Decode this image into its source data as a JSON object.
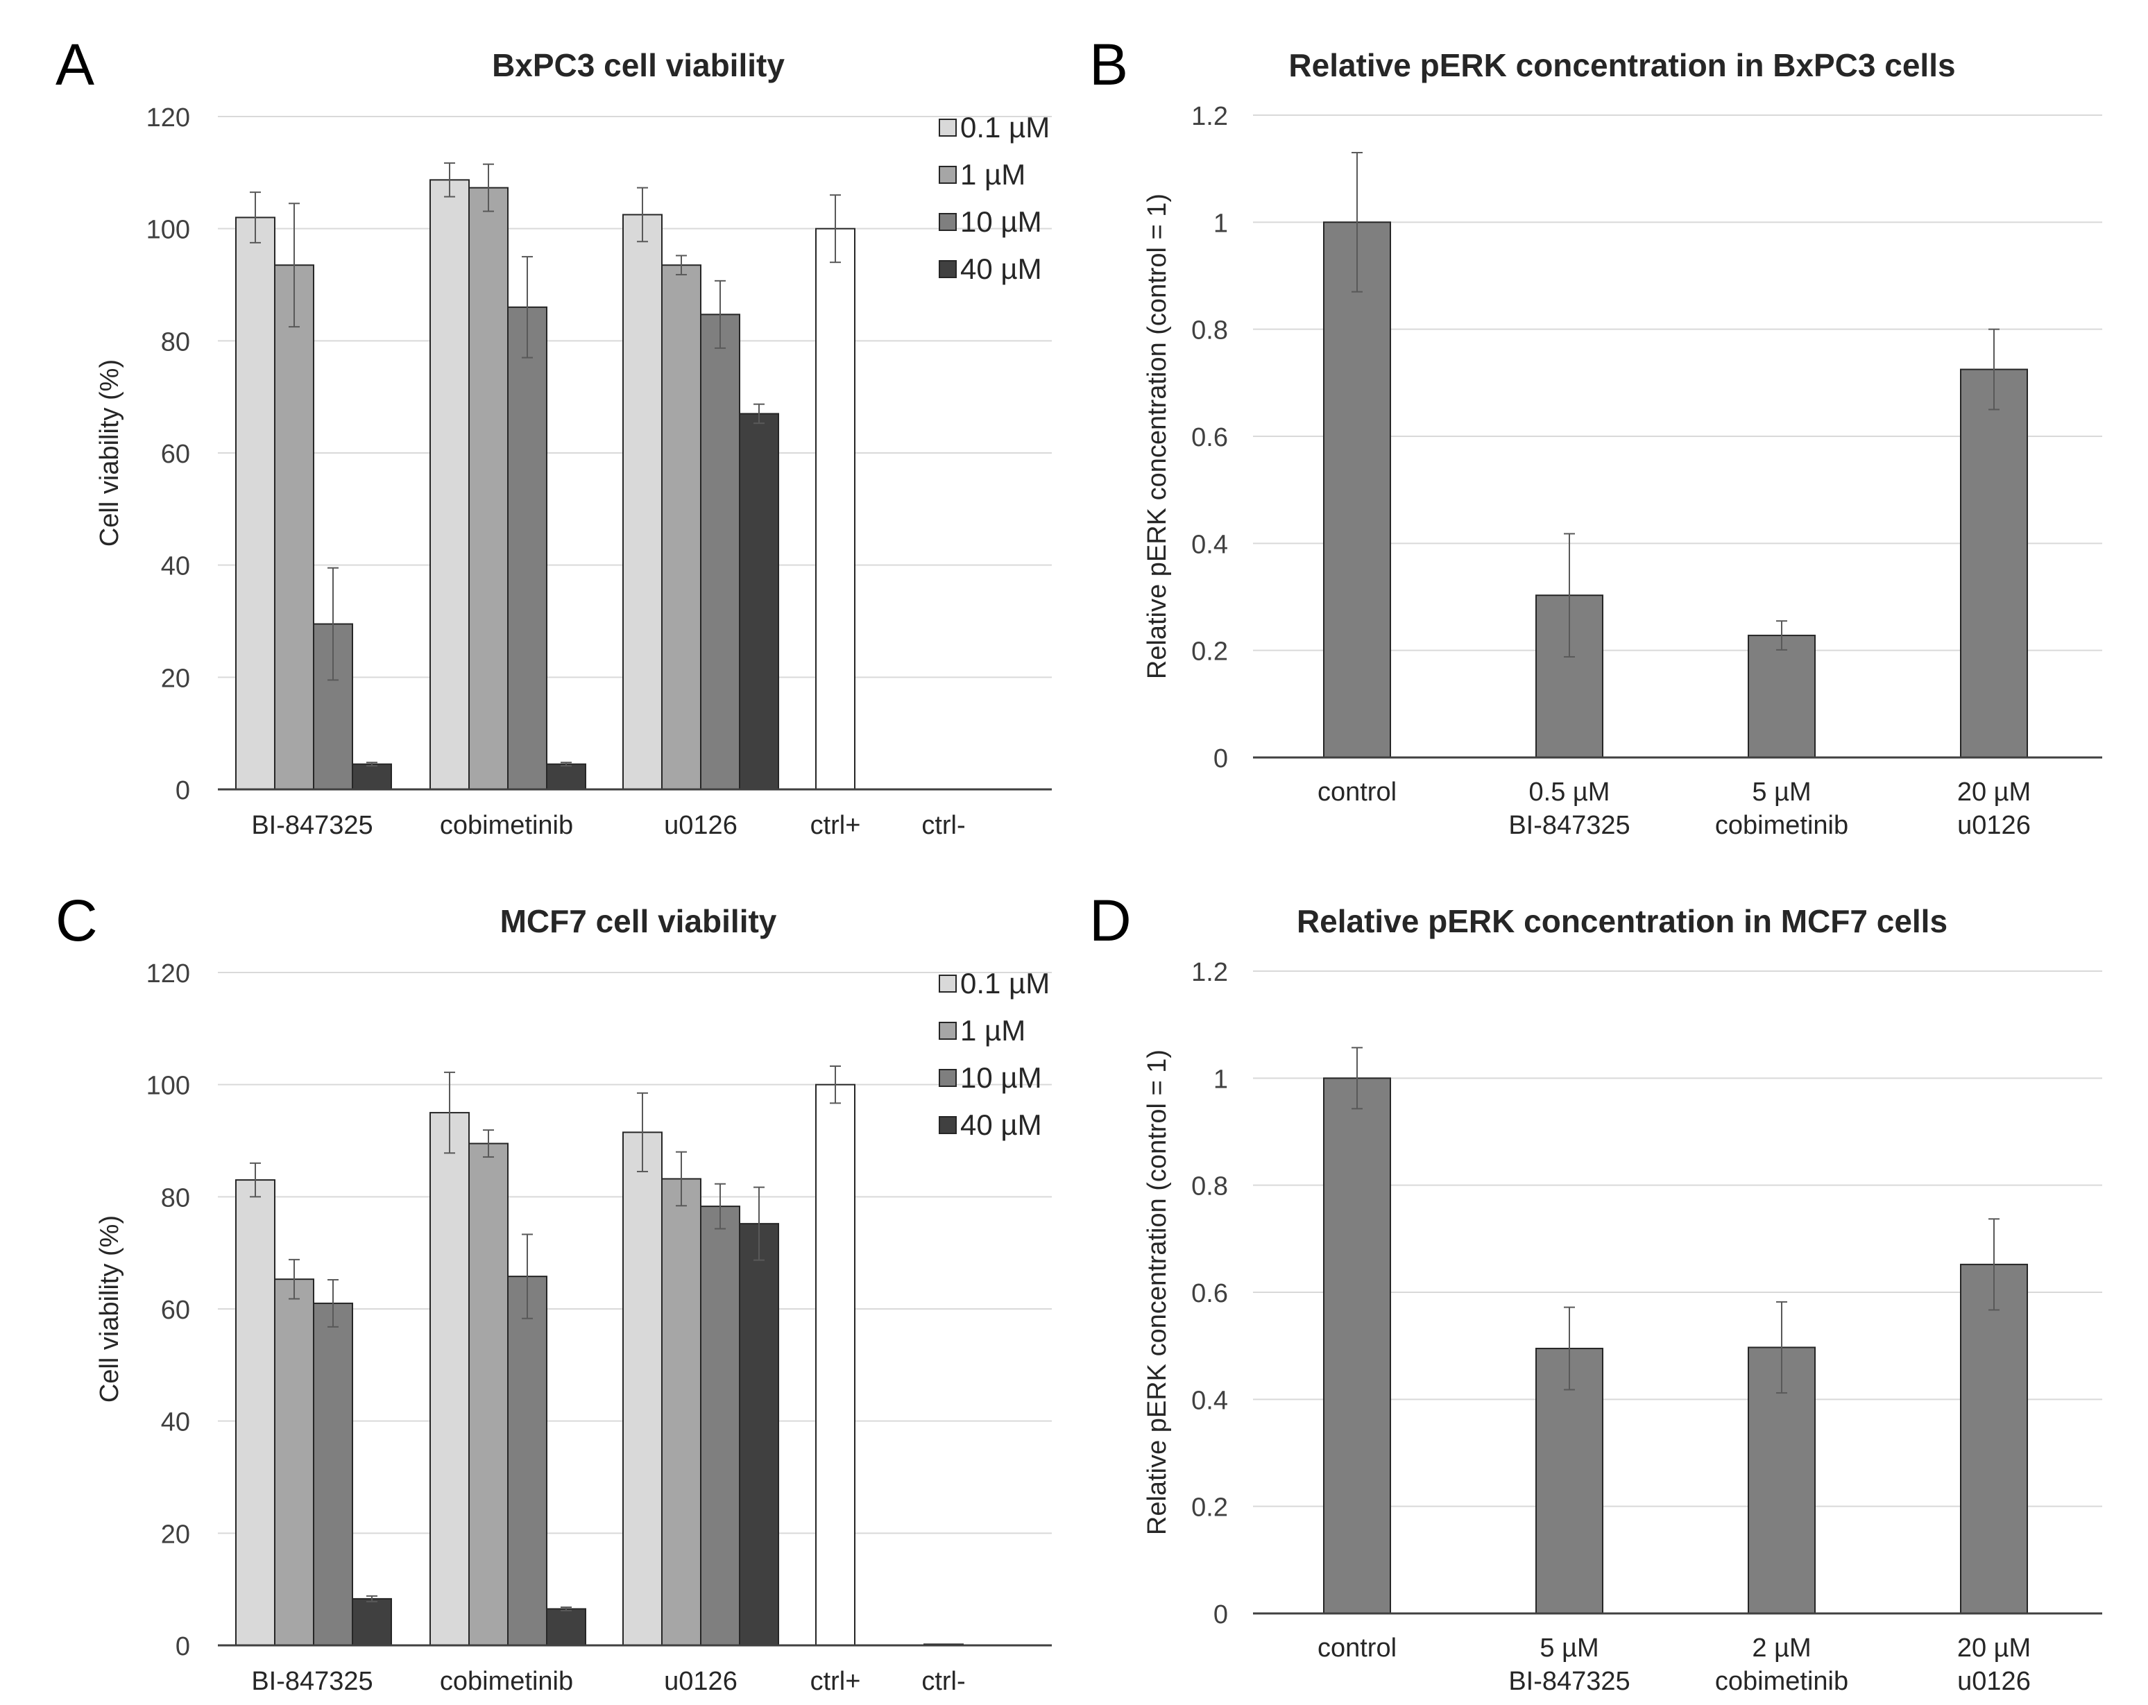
{
  "chart_data": [
    {
      "type": "bar",
      "panel": "A",
      "title": "BxPC3 cell viability",
      "ylabel": "Cell viability (%)",
      "ylim": [
        0,
        120
      ],
      "yticks": [
        "0",
        "20",
        "40",
        "60",
        "80",
        "100",
        "120"
      ],
      "categories": [
        "BI-847325",
        "cobimetinib",
        "u0126",
        "ctrl+",
        "ctrl-"
      ],
      "legend": [
        "0.1 µM",
        "1 µM",
        "10 µM",
        "40 µM"
      ],
      "legend_position": "top-right",
      "grid": true,
      "groups": [
        {
          "values": [
            102,
            93.5,
            29.5,
            4.5
          ],
          "errors": [
            4.5,
            11,
            10,
            0.3
          ]
        },
        {
          "values": [
            108.7,
            107.3,
            86,
            4.5
          ],
          "errors": [
            3,
            4.2,
            9,
            0.3
          ]
        },
        {
          "values": [
            102.5,
            93.5,
            84.7,
            67
          ],
          "errors": [
            4.8,
            1.7,
            6,
            1.7
          ]
        },
        {
          "values": [
            100
          ],
          "errors": [
            6
          ]
        },
        {
          "values": [
            0
          ],
          "errors": [
            0
          ]
        }
      ]
    },
    {
      "type": "bar",
      "panel": "B",
      "title": "Relative pERK concentration in BxPC3 cells",
      "ylabel": "Relative pERK concentration (control = 1)",
      "ylim": [
        0,
        1.2
      ],
      "yticks": [
        "0",
        "0.2",
        "0.4",
        "0.6",
        "0.8",
        "1",
        "1.2"
      ],
      "categories": [
        [
          "control",
          ""
        ],
        [
          "0.5 µM",
          "BI-847325"
        ],
        [
          "5 µM",
          "cobimetinib"
        ],
        [
          "20 µM",
          "u0126"
        ]
      ],
      "grid": true,
      "values": [
        1,
        0.303,
        0.228,
        0.725
      ],
      "errors": [
        0.13,
        0.115,
        0.027,
        0.075
      ]
    },
    {
      "type": "bar",
      "panel": "C",
      "title": "MCF7 cell viability",
      "ylabel": "Cell viability (%)",
      "ylim": [
        0,
        120
      ],
      "yticks": [
        "0",
        "20",
        "40",
        "60",
        "80",
        "100",
        "120"
      ],
      "categories": [
        "BI-847325",
        "cobimetinib",
        "u0126",
        "ctrl+",
        "ctrl-"
      ],
      "legend": [
        "0.1 µM",
        "1 µM",
        "10 µM",
        "40 µM"
      ],
      "legend_position": "top-right",
      "grid": true,
      "groups": [
        {
          "values": [
            83,
            65.3,
            61,
            8.3
          ],
          "errors": [
            3,
            3.5,
            4.2,
            0.5
          ]
        },
        {
          "values": [
            95,
            89.5,
            65.8,
            6.5
          ],
          "errors": [
            7.2,
            2.4,
            7.5,
            0.3
          ]
        },
        {
          "values": [
            91.5,
            83.2,
            78.3,
            75.2
          ],
          "errors": [
            7,
            4.8,
            4,
            6.5
          ]
        },
        {
          "values": [
            100
          ],
          "errors": [
            3.3
          ]
        },
        {
          "values": [
            0.2
          ],
          "errors": [
            0
          ]
        }
      ]
    },
    {
      "type": "bar",
      "panel": "D",
      "title": "Relative pERK concentration in MCF7 cells",
      "ylabel": "Relative pERK concentration (control = 1)",
      "ylim": [
        0,
        1.2
      ],
      "yticks": [
        "0",
        "0.2",
        "0.4",
        "0.6",
        "0.8",
        "1",
        "1.2"
      ],
      "categories": [
        [
          "control",
          ""
        ],
        [
          "5 µM",
          "BI-847325"
        ],
        [
          "2 µM",
          "cobimetinib"
        ],
        [
          "20 µM",
          "u0126"
        ]
      ],
      "grid": true,
      "values": [
        1,
        0.495,
        0.497,
        0.652
      ],
      "errors": [
        0.057,
        0.077,
        0.085,
        0.085
      ]
    }
  ],
  "colors": {
    "dose": [
      "#d9d9d9",
      "#a6a6a6",
      "#7f7f7f",
      "#404040"
    ],
    "ctrl": "#ffffff",
    "perk": "#7f7f7f",
    "grid": "#d9d9d9",
    "axis": "#404040"
  }
}
